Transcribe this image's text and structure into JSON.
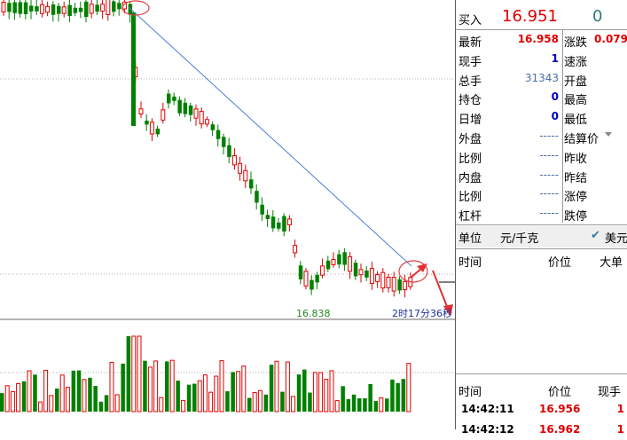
{
  "chart": {
    "low_label": "16.838",
    "time_label": "2时17分36秒"
  },
  "quote": {
    "buy_label": "买入",
    "buy_price": "16.951",
    "buy_volume": "0",
    "rows": [
      {
        "left_label": "最新",
        "left_value": "16.958",
        "right_label": "涨跌",
        "right_value": "0.079"
      },
      {
        "left_label": "现手",
        "left_value": "1",
        "right_label": "速涨",
        "right_value": ""
      },
      {
        "left_label": "总手",
        "left_value": "31343",
        "right_label": "开盘",
        "right_value": ""
      },
      {
        "left_label": "持仓",
        "left_value": "0",
        "right_label": "最高",
        "right_value": ""
      },
      {
        "left_label": "日增",
        "left_value": "0",
        "right_label": "最低",
        "right_value": ""
      },
      {
        "left_label": "外盘",
        "left_value": "-----",
        "right_label": "结算价",
        "right_value": ""
      },
      {
        "left_label": "比例",
        "left_value": "-----",
        "right_label": "昨收",
        "right_value": ""
      },
      {
        "left_label": "内盘",
        "left_value": "-----",
        "right_label": "昨结",
        "right_value": ""
      },
      {
        "left_label": "比例",
        "left_value": "-----",
        "right_label": "涨停",
        "right_value": ""
      },
      {
        "left_label": "杠杆",
        "left_value": "-----",
        "right_label": "跌停",
        "right_value": ""
      }
    ]
  },
  "unit_bar": {
    "label": "单位",
    "unit": "元/千克",
    "currency": "美元",
    "check_icon": "checkmark-icon"
  },
  "trades_header": {
    "time": "时间",
    "price": "价位",
    "big": "大单"
  },
  "ticks_header": {
    "time": "时间",
    "price": "价位",
    "hand": "现手"
  },
  "ticks": [
    {
      "time": "14:42:11",
      "price": "16.956",
      "hand": "1"
    },
    {
      "time": "14:42:12",
      "price": "16.962",
      "hand": "1"
    }
  ],
  "colors": {
    "up": "#e00000",
    "down": "#008000",
    "trend": "#4a7fd8",
    "grid": "#aaaaaa"
  }
}
